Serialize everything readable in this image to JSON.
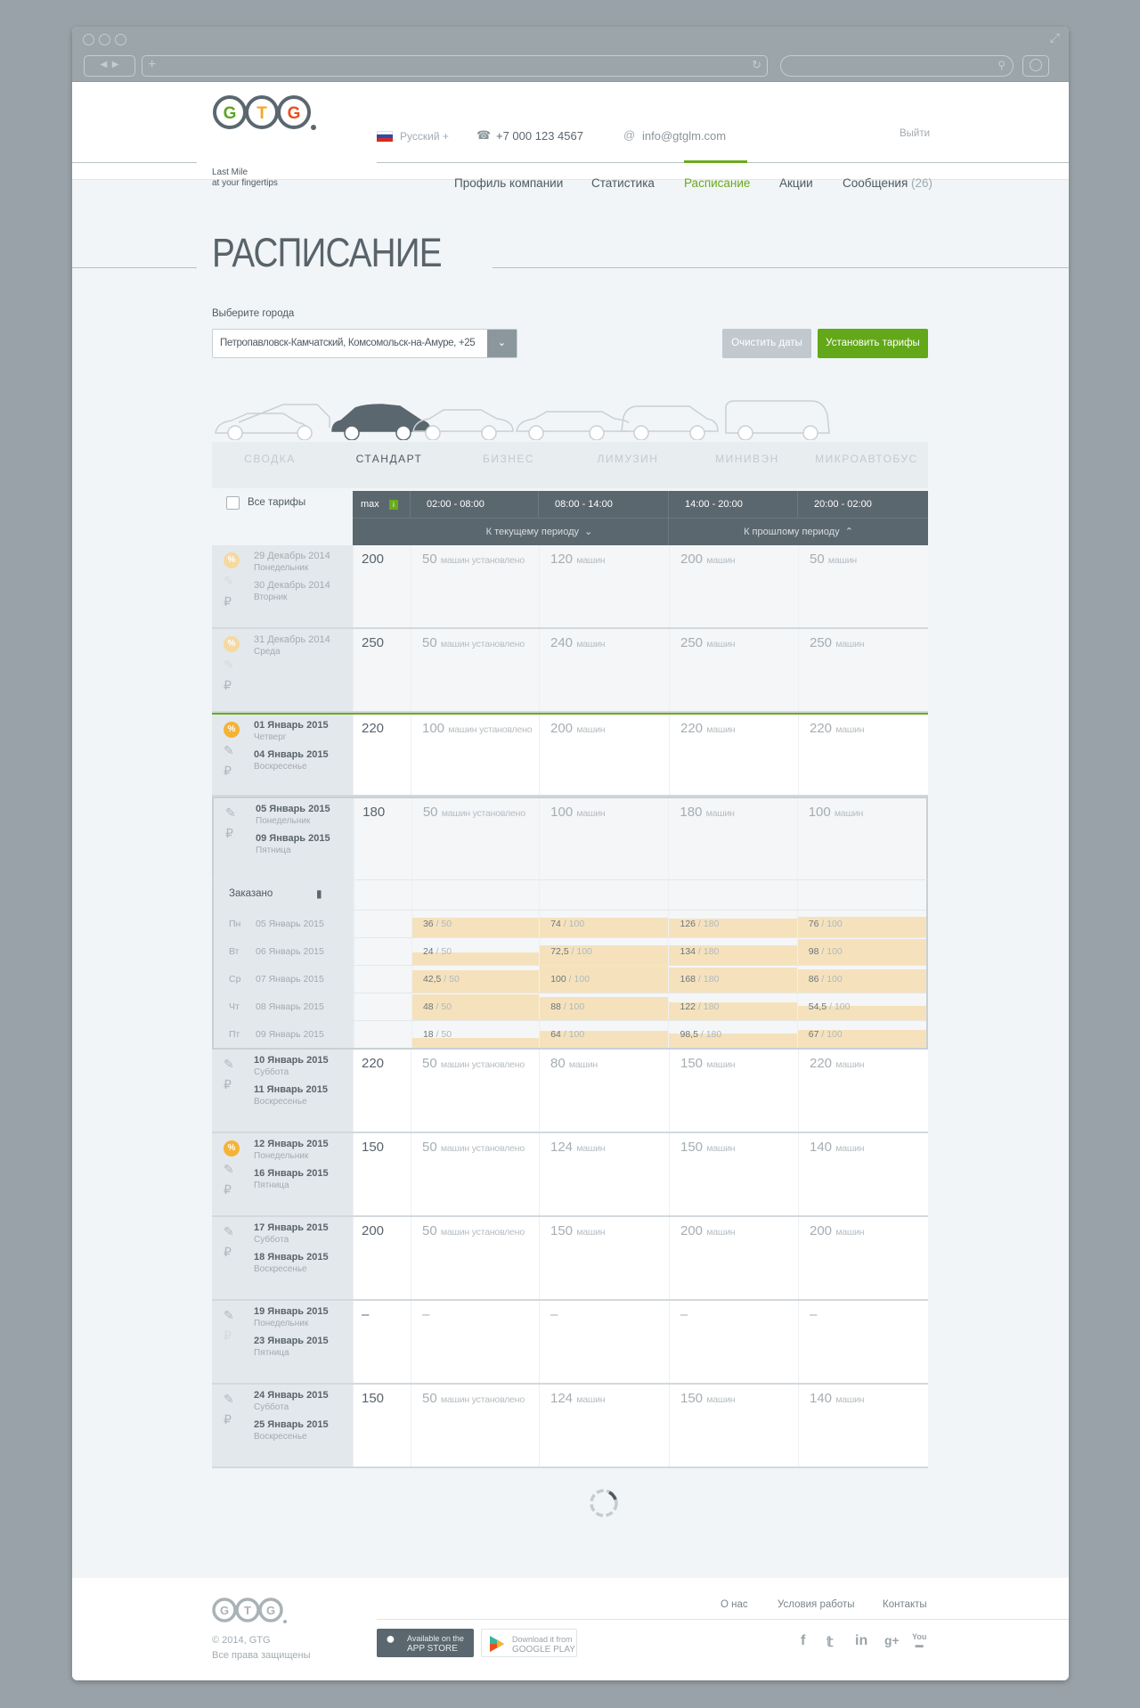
{
  "header": {
    "logo": {
      "letters": [
        "G",
        "T",
        "G"
      ],
      "tagline_1": "Last Mile",
      "tagline_2": "at your fingertips",
      "colors": [
        "#5aa51e",
        "#f5a623",
        "#e8501c"
      ]
    },
    "language": "Русский +",
    "phone": "+7 000 123 4567",
    "email": "info@gtglm.com",
    "logout": "Выйти",
    "nav": [
      {
        "label": "Профиль компании"
      },
      {
        "label": "Статистика"
      },
      {
        "label": "Расписание",
        "active": true
      },
      {
        "label": "Акции"
      },
      {
        "label": "Сообщения",
        "count": "(26)"
      }
    ]
  },
  "page": {
    "title": "РАСПИСАНИЕ",
    "city_label": "Выберите города",
    "city_value": "Петропавловск-Камчатский, Комсомольск-на-Амуре, +25",
    "clear_dates": "Очистить даты",
    "set_tariffs": "Установить тарифы"
  },
  "vehicle_tabs": [
    {
      "label": "СВОДКА"
    },
    {
      "label": "СТАНДАРТ",
      "active": true
    },
    {
      "label": "БИЗНЕС"
    },
    {
      "label": "ЛИМУЗИН"
    },
    {
      "label": "МИНИВЭН"
    },
    {
      "label": "МИКРОАВТОБУС"
    }
  ],
  "table": {
    "all_tariffs": "Все тарифы",
    "max_label": "max",
    "info_badge": "i",
    "slots": [
      "02:00 - 08:00",
      "08:00 - 14:00",
      "14:00 - 20:00",
      "20:00 - 02:00"
    ],
    "to_current": "К текущему периоду",
    "to_previous": "К прошлому периоду",
    "rows": [
      {
        "state": "past",
        "percent": "faded",
        "pencil_faded": true,
        "start": {
          "date": "29 Декабрь 2014",
          "day": "Понедельник"
        },
        "end": {
          "date": "30 Декабрь 2014",
          "day": "Вторник"
        },
        "max": "200",
        "slots": [
          {
            "n": "50",
            "unit": "машин установлено"
          },
          {
            "n": "120",
            "unit": "машин"
          },
          {
            "n": "200",
            "unit": "машин"
          },
          {
            "n": "50",
            "unit": "машин"
          }
        ]
      },
      {
        "state": "past",
        "percent": "faded",
        "pencil_faded": true,
        "start": {
          "date": "31 Декабрь 2014",
          "day": "Среда"
        },
        "max": "250",
        "slots": [
          {
            "n": "50",
            "unit": "машин установлено"
          },
          {
            "n": "240",
            "unit": "машин"
          },
          {
            "n": "250",
            "unit": "машин"
          },
          {
            "n": "250",
            "unit": "машин"
          }
        ]
      },
      {
        "state": "current",
        "percent": "active",
        "start": {
          "date": "01 Январь 2015",
          "day": "Четверг"
        },
        "end": {
          "date": "04 Январь 2015",
          "day": "Воскресенье"
        },
        "max": "220",
        "slots": [
          {
            "n": "100",
            "unit": "машин установлено"
          },
          {
            "n": "200",
            "unit": "машин"
          },
          {
            "n": "220",
            "unit": "машин"
          },
          {
            "n": "220",
            "unit": "машин"
          }
        ]
      },
      {
        "state": "expanded",
        "start": {
          "date": "05 Январь 2015",
          "day": "Понедельник"
        },
        "end": {
          "date": "09 Январь 2015",
          "day": "Пятница"
        },
        "max": "180",
        "slots": [
          {
            "n": "50",
            "unit": "машин установлено"
          },
          {
            "n": "100",
            "unit": "машин"
          },
          {
            "n": "180",
            "unit": "машин"
          },
          {
            "n": "100",
            "unit": "машин"
          }
        ],
        "booked": {
          "label": "Заказано",
          "days": [
            {
              "wd": "Пн",
              "date": "05 Январь 2015",
              "values": [
                [
                  "36",
                  "50"
                ],
                [
                  "74",
                  "100"
                ],
                [
                  "126",
                  "180"
                ],
                [
                  "76",
                  "100"
                ]
              ]
            },
            {
              "wd": "Вт",
              "date": "06 Январь 2015",
              "values": [
                [
                  "24",
                  "50"
                ],
                [
                  "72,5",
                  "100"
                ],
                [
                  "134",
                  "180"
                ],
                [
                  "98",
                  "100"
                ]
              ]
            },
            {
              "wd": "Ср",
              "date": "07 Январь 2015",
              "values": [
                [
                  "42,5",
                  "50"
                ],
                [
                  "100",
                  "100"
                ],
                [
                  "168",
                  "180"
                ],
                [
                  "86",
                  "100"
                ]
              ]
            },
            {
              "wd": "Чт",
              "date": "08 Январь 2015",
              "values": [
                [
                  "48",
                  "50"
                ],
                [
                  "88",
                  "100"
                ],
                [
                  "122",
                  "180"
                ],
                [
                  "54,5",
                  "100"
                ]
              ]
            },
            {
              "wd": "Пт",
              "date": "09 Январь 2015",
              "values": [
                [
                  "18",
                  "50"
                ],
                [
                  "64",
                  "100"
                ],
                [
                  "98,5",
                  "180"
                ],
                [
                  "67",
                  "100"
                ]
              ]
            }
          ]
        }
      },
      {
        "state": "future",
        "start": {
          "date": "10 Январь 2015",
          "day": "Суббота"
        },
        "end": {
          "date": "11 Январь 2015",
          "day": "Воскресенье"
        },
        "max": "220",
        "slots": [
          {
            "n": "50",
            "unit": "машин установлено"
          },
          {
            "n": "80",
            "unit": "машин"
          },
          {
            "n": "150",
            "unit": "машин"
          },
          {
            "n": "220",
            "unit": "машин"
          }
        ]
      },
      {
        "state": "future",
        "percent": "active",
        "start": {
          "date": "12 Январь 2015",
          "day": "Понедельник"
        },
        "end": {
          "date": "16 Январь 2015",
          "day": "Пятница"
        },
        "max": "150",
        "slots": [
          {
            "n": "50",
            "unit": "машин установлено"
          },
          {
            "n": "124",
            "unit": "машин"
          },
          {
            "n": "150",
            "unit": "машин"
          },
          {
            "n": "140",
            "unit": "машин"
          }
        ]
      },
      {
        "state": "future",
        "start": {
          "date": "17 Январь 2015",
          "day": "Суббота"
        },
        "end": {
          "date": "18 Январь 2015",
          "day": "Воскресенье"
        },
        "max": "200",
        "slots": [
          {
            "n": "50",
            "unit": "машин установлено"
          },
          {
            "n": "150",
            "unit": "машин"
          },
          {
            "n": "200",
            "unit": "машин"
          },
          {
            "n": "200",
            "unit": "машин"
          }
        ]
      },
      {
        "state": "future",
        "ruble_faded": true,
        "start": {
          "date": "19 Январь 2015",
          "day": "Понедельник"
        },
        "end": {
          "date": "23 Январь 2015",
          "day": "Пятница"
        },
        "max": "–",
        "slots": [
          {
            "n": "–",
            "unit": ""
          },
          {
            "n": "–",
            "unit": ""
          },
          {
            "n": "–",
            "unit": ""
          },
          {
            "n": "–",
            "unit": ""
          }
        ]
      },
      {
        "state": "future",
        "start": {
          "date": "24 Январь 2015",
          "day": "Суббота"
        },
        "end": {
          "date": "25 Январь 2015",
          "day": "Воскресенье"
        },
        "max": "150",
        "slots": [
          {
            "n": "50",
            "unit": "машин установлено"
          },
          {
            "n": "124",
            "unit": "машин"
          },
          {
            "n": "150",
            "unit": "машин"
          },
          {
            "n": "140",
            "unit": "машин"
          }
        ]
      }
    ]
  },
  "footer": {
    "links": [
      "О нас",
      "Условия работы",
      "Контакты"
    ],
    "copyright": "© 2014, GTG",
    "rights": "Все права защищены",
    "app_store": {
      "line1": "Available on the",
      "line2": "APP STORE"
    },
    "google_play": {
      "line1": "Download it from",
      "line2": "GOOGLE PLAY"
    },
    "social": [
      "facebook",
      "twitter",
      "linkedin",
      "google-plus",
      "youtube"
    ]
  },
  "colors": {
    "accent": "#6aaa1c",
    "header_dark": "#5b676e",
    "booked_fill": "#f5e2bd",
    "percent_active": "#f5b335",
    "percent_faded": "#f5d9a0"
  }
}
